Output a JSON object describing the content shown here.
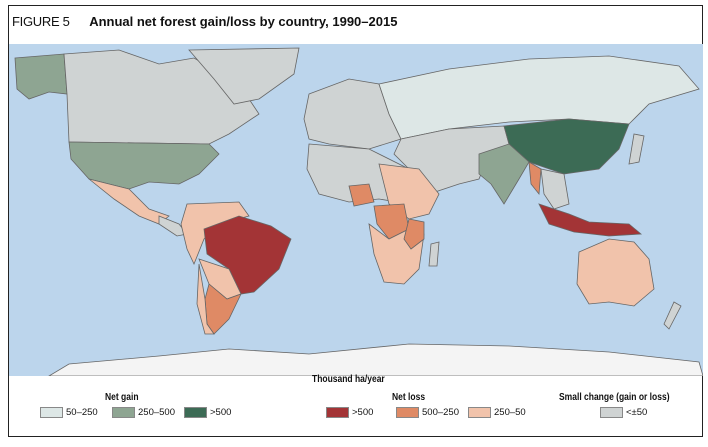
{
  "figure": {
    "label": "FIGURE 5",
    "title": "Annual net forest gain/loss by country, 1990–2015"
  },
  "legend": {
    "unit": "Thousand ha/year",
    "net_gain": {
      "title": "Net gain",
      "items": [
        {
          "label": "50–250",
          "color": "#dde7e6"
        },
        {
          "label": "250–500",
          "color": "#8ea592"
        },
        {
          "label": ">500",
          "color": "#3c6b55"
        }
      ]
    },
    "net_loss": {
      "title": "Net loss",
      "items": [
        {
          "label": ">500",
          "color": "#a33436"
        },
        {
          "label": "500–250",
          "color": "#df8a65"
        },
        {
          "label": "250–50",
          "color": "#f1c3ab"
        }
      ]
    },
    "small_change": {
      "title": "Small change (gain or loss)",
      "items": [
        {
          "label": "<±50",
          "color": "#cfd3d3"
        }
      ]
    }
  },
  "colors": {
    "ocean": "#bcd5ec",
    "antarctica": "#f4f4f4"
  }
}
